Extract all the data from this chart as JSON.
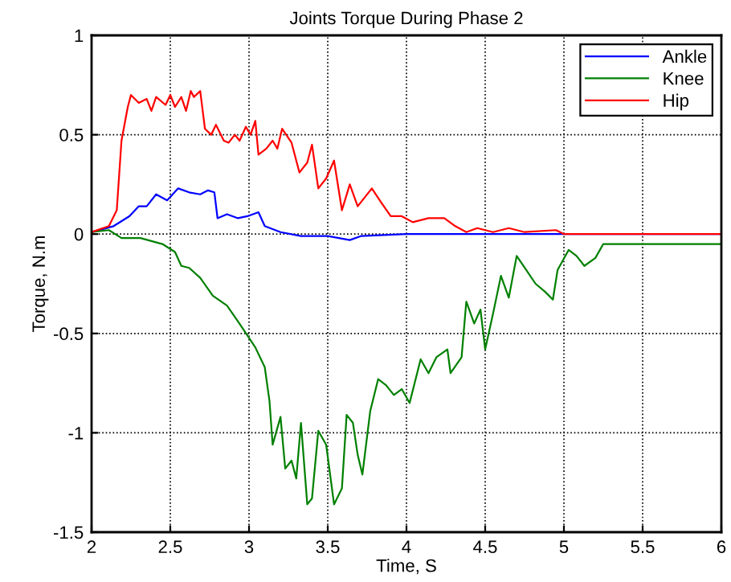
{
  "chart_data": {
    "type": "line",
    "title": "Joints Torque During Phase 2",
    "xlabel": "Time, S",
    "ylabel": "Torque, N.m",
    "xlim": [
      2,
      6
    ],
    "ylim": [
      -1.5,
      1
    ],
    "xticks": [
      2,
      2.5,
      3,
      3.5,
      4,
      4.5,
      5,
      5.5,
      6
    ],
    "yticks": [
      -1.5,
      -1,
      -0.5,
      0,
      0.5,
      1
    ],
    "grid": true,
    "legend": "top right",
    "marker": "none",
    "line_style": "solid",
    "series": [
      {
        "name": "Ankle",
        "color": "#0000ff",
        "x": [
          2,
          2.14,
          2.24,
          2.3,
          2.35,
          2.41,
          2.48,
          2.55,
          2.62,
          2.69,
          2.74,
          2.78,
          2.8,
          2.86,
          2.93,
          2.99,
          3.06,
          3.1,
          3.2,
          3.33,
          3.5,
          3.64,
          3.71,
          4,
          6
        ],
        "values": [
          0.01,
          0.04,
          0.09,
          0.14,
          0.14,
          0.2,
          0.17,
          0.23,
          0.21,
          0.2,
          0.22,
          0.21,
          0.08,
          0.1,
          0.08,
          0.09,
          0.11,
          0.04,
          0.01,
          -0.01,
          -0.01,
          -0.03,
          -0.01,
          0,
          0
        ]
      },
      {
        "name": "Knee",
        "color": "#008000",
        "x": [
          2,
          2.11,
          2.19,
          2.31,
          2.45,
          2.53,
          2.57,
          2.62,
          2.69,
          2.77,
          2.86,
          2.93,
          2.99,
          3.04,
          3.1,
          3.13,
          3.15,
          3.2,
          3.23,
          3.27,
          3.3,
          3.33,
          3.37,
          3.4,
          3.44,
          3.49,
          3.54,
          3.59,
          3.62,
          3.66,
          3.69,
          3.72,
          3.77,
          3.82,
          3.87,
          3.92,
          3.97,
          4.02,
          4.09,
          4.14,
          4.19,
          4.26,
          4.28,
          4.35,
          4.38,
          4.43,
          4.47,
          4.5,
          4.55,
          4.6,
          4.65,
          4.7,
          4.76,
          4.82,
          4.88,
          4.93,
          4.96,
          5.03,
          5.08,
          5.13,
          5.2,
          5.25,
          6
        ],
        "values": [
          0.01,
          0.02,
          -0.02,
          -0.02,
          -0.05,
          -0.09,
          -0.16,
          -0.17,
          -0.22,
          -0.31,
          -0.36,
          -0.44,
          -0.51,
          -0.57,
          -0.67,
          -0.84,
          -1.06,
          -0.92,
          -1.18,
          -1.14,
          -1.23,
          -0.95,
          -1.36,
          -1.33,
          -0.99,
          -1.06,
          -1.36,
          -1.28,
          -0.91,
          -0.95,
          -1.11,
          -1.21,
          -0.89,
          -0.73,
          -0.76,
          -0.81,
          -0.78,
          -0.85,
          -0.63,
          -0.7,
          -0.62,
          -0.58,
          -0.7,
          -0.62,
          -0.34,
          -0.45,
          -0.38,
          -0.58,
          -0.4,
          -0.21,
          -0.32,
          -0.11,
          -0.18,
          -0.25,
          -0.29,
          -0.33,
          -0.18,
          -0.08,
          -0.11,
          -0.16,
          -0.12,
          -0.05,
          -0.05
        ]
      },
      {
        "name": "Hip",
        "color": "#ff0000",
        "x": [
          2,
          2.11,
          2.16,
          2.19,
          2.23,
          2.25,
          2.3,
          2.35,
          2.38,
          2.41,
          2.47,
          2.5,
          2.53,
          2.57,
          2.6,
          2.63,
          2.65,
          2.69,
          2.72,
          2.76,
          2.79,
          2.84,
          2.87,
          2.91,
          2.94,
          2.98,
          3.01,
          3.04,
          3.06,
          3.11,
          3.15,
          3.18,
          3.21,
          3.27,
          3.32,
          3.37,
          3.4,
          3.44,
          3.49,
          3.54,
          3.59,
          3.64,
          3.69,
          3.78,
          3.83,
          3.9,
          3.97,
          4.04,
          4.14,
          4.24,
          4.31,
          4.38,
          4.45,
          4.55,
          4.65,
          4.75,
          4.95,
          5,
          6
        ],
        "values": [
          0.01,
          0.04,
          0.12,
          0.47,
          0.64,
          0.7,
          0.66,
          0.68,
          0.62,
          0.69,
          0.65,
          0.7,
          0.64,
          0.69,
          0.62,
          0.72,
          0.69,
          0.72,
          0.53,
          0.5,
          0.55,
          0.47,
          0.46,
          0.5,
          0.47,
          0.54,
          0.5,
          0.57,
          0.4,
          0.43,
          0.47,
          0.43,
          0.53,
          0.46,
          0.31,
          0.36,
          0.45,
          0.23,
          0.28,
          0.37,
          0.12,
          0.25,
          0.14,
          0.23,
          0.17,
          0.09,
          0.09,
          0.06,
          0.08,
          0.08,
          0.04,
          0.01,
          0.03,
          0.01,
          0.03,
          0.01,
          0.02,
          0,
          0
        ]
      }
    ]
  }
}
